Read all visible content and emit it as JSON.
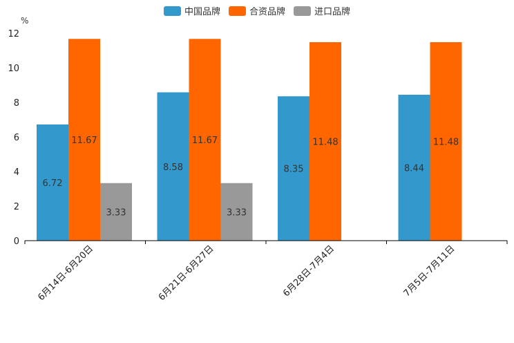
{
  "chart_data": {
    "type": "bar",
    "ylabel": "%",
    "ylim": [
      0,
      12
    ],
    "yticks": [
      "0",
      "2",
      "4",
      "6",
      "8",
      "10",
      "12"
    ],
    "categories": [
      "6月14日-6月20日",
      "6月21日-6月27日",
      "6月28日-7月4日",
      "7月5日-7月11日"
    ],
    "series": [
      {
        "name": "中国品牌",
        "color": "#3399CC",
        "values": [
          6.72,
          8.58,
          8.35,
          8.44
        ],
        "labels": [
          "6.72",
          "8.58",
          "8.35",
          "8.44"
        ]
      },
      {
        "name": "合资品牌",
        "color": "#FF6600",
        "values": [
          11.67,
          11.67,
          11.48,
          11.48
        ],
        "labels": [
          "11.67",
          "11.67",
          "11.48",
          "11.48"
        ]
      },
      {
        "name": "进口品牌",
        "color": "#999999",
        "values": [
          3.33,
          3.33,
          null,
          null
        ],
        "labels": [
          "3.33",
          "3.33",
          null,
          null
        ]
      }
    ],
    "legend": "top-center",
    "grid": false
  }
}
